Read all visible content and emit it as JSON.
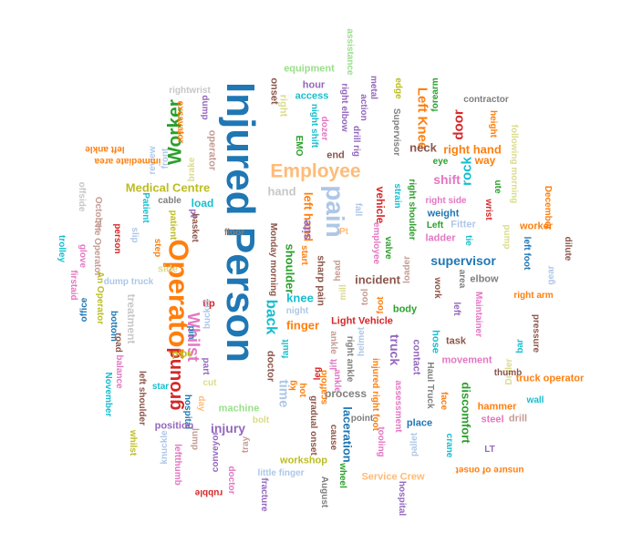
{
  "words": [
    {
      "text": "Injured Person",
      "color": "#1f77b4"
    },
    {
      "text": "Operator",
      "color": "#ff7f0e"
    },
    {
      "text": "Employee",
      "color": "#ffbb78"
    },
    {
      "text": "pain",
      "color": "#aec7e8"
    },
    {
      "text": "Worker",
      "color": "#2ca02c"
    },
    {
      "text": "ground",
      "color": "#d62728"
    },
    {
      "text": "Whilst",
      "color": "#e377c2"
    },
    {
      "text": "back",
      "color": "#17becf"
    },
    {
      "text": "Medical Centre",
      "color": "#bcbd22"
    },
    {
      "text": "supervisor",
      "color": "#1f77b4"
    },
    {
      "text": "shift",
      "color": "#e377c2"
    },
    {
      "text": "rock",
      "color": "#17becf"
    },
    {
      "text": "right hand",
      "color": "#ff7f0e"
    },
    {
      "text": "door",
      "color": "#d62728"
    },
    {
      "text": "Left Knee",
      "color": "#ff7f0e"
    },
    {
      "text": "neck",
      "color": "#8c564b"
    },
    {
      "text": "left hand",
      "color": "#ff7f0e"
    },
    {
      "text": "site",
      "color": "#9467bd"
    },
    {
      "text": "hand",
      "color": "#c7c7c7"
    },
    {
      "text": "knee",
      "color": "#17becf"
    },
    {
      "text": "finger",
      "color": "#ff7f0e"
    },
    {
      "text": "incident",
      "color": "#8c564b"
    },
    {
      "text": "truck",
      "color": "#9467bd"
    },
    {
      "text": "time",
      "color": "#aec7e8"
    },
    {
      "text": "injury",
      "color": "#9467bd"
    },
    {
      "text": "process",
      "color": "#7f7f7f"
    },
    {
      "text": "laceration",
      "color": "#1f77b4"
    },
    {
      "text": "discomfort",
      "color": "#2ca02c"
    },
    {
      "text": "vehicle",
      "color": "#d62728"
    },
    {
      "text": "Light Vehicle",
      "color": "#d62728"
    },
    {
      "text": "treatment",
      "color": "#c7c7c7"
    },
    {
      "text": "equipment",
      "color": "#98df8a"
    },
    {
      "text": "access",
      "color": "#17becf"
    },
    {
      "text": "hour",
      "color": "#9467bd"
    },
    {
      "text": "right",
      "color": "#dbdb8d"
    },
    {
      "text": "onset",
      "color": "#8c564b"
    },
    {
      "text": "assistance",
      "color": "#98df8a"
    },
    {
      "text": "right elbow",
      "color": "#9467bd"
    },
    {
      "text": "night shift",
      "color": "#17becf"
    },
    {
      "text": "dozer",
      "color": "#e377c2"
    },
    {
      "text": "EMO",
      "color": "#2ca02c"
    },
    {
      "text": "end",
      "color": "#8c564b"
    },
    {
      "text": "drill rig",
      "color": "#9467bd"
    },
    {
      "text": "action",
      "color": "#9467bd"
    },
    {
      "text": "metal",
      "color": "#9467bd"
    },
    {
      "text": "edge",
      "color": "#bcbd22"
    },
    {
      "text": "Supervisor",
      "color": "#7f7f7f"
    },
    {
      "text": "forearm",
      "color": "#2ca02c"
    },
    {
      "text": "contractor",
      "color": "#7f7f7f"
    },
    {
      "text": "height",
      "color": "#ff7f0e"
    },
    {
      "text": "eye",
      "color": "#2ca02c"
    },
    {
      "text": "way",
      "color": "#ff7f0e"
    },
    {
      "text": "following morning",
      "color": "#dbdb8d"
    },
    {
      "text": "rightwrist",
      "color": "#c7c7c7"
    },
    {
      "text": "excavator",
      "color": "#ff7f0e"
    },
    {
      "text": "dump",
      "color": "#9467bd"
    },
    {
      "text": "operator",
      "color": "#c49c94"
    },
    {
      "text": "brake",
      "color": "#dbdb8d"
    },
    {
      "text": "review",
      "color": "#aec7e8"
    },
    {
      "text": "immediate area",
      "color": "#ff7f0e"
    },
    {
      "text": "left ankle",
      "color": "#ff7f0e"
    },
    {
      "text": "front",
      "color": "#aec7e8"
    },
    {
      "text": "load",
      "color": "#17becf"
    },
    {
      "text": "cable",
      "color": "#7f7f7f"
    },
    {
      "text": "Patient",
      "color": "#17becf"
    },
    {
      "text": "patient",
      "color": "#bcbd22"
    },
    {
      "text": "basket",
      "color": "#8c564b"
    },
    {
      "text": "floor",
      "color": "#7f7f7f"
    },
    {
      "text": "pt",
      "color": "#9467bd"
    },
    {
      "text": "Pt",
      "color": "#ffbb78"
    },
    {
      "text": "fall",
      "color": "#aec7e8"
    },
    {
      "text": "employee",
      "color": "#e377c2"
    },
    {
      "text": "valve",
      "color": "#2ca02c"
    },
    {
      "text": "right side",
      "color": "#e377c2"
    },
    {
      "text": "weight",
      "color": "#1f77b4"
    },
    {
      "text": "Left",
      "color": "#2ca02c"
    },
    {
      "text": "Fitter",
      "color": "#aec7e8"
    },
    {
      "text": "ladder",
      "color": "#e377c2"
    },
    {
      "text": "tie",
      "color": "#17becf"
    },
    {
      "text": "right shoulder",
      "color": "#2ca02c"
    },
    {
      "text": "strain",
      "color": "#17becf"
    },
    {
      "text": "wrist",
      "color": "#d62728"
    },
    {
      "text": "pump",
      "color": "#dbdb8d"
    },
    {
      "text": "December",
      "color": "#ff7f0e"
    },
    {
      "text": "worker",
      "color": "#ff7f0e"
    },
    {
      "text": "ute",
      "color": "#2ca02c"
    },
    {
      "text": "left foot",
      "color": "#1f77b4"
    },
    {
      "text": "dilute",
      "color": "#8c564b"
    },
    {
      "text": "gear",
      "color": "#aec7e8"
    },
    {
      "text": "elbow",
      "color": "#7f7f7f"
    },
    {
      "text": "area",
      "color": "#7f7f7f"
    },
    {
      "text": "right arm",
      "color": "#ff7f0e"
    },
    {
      "text": "Maintainer",
      "color": "#e377c2"
    },
    {
      "text": "pressure",
      "color": "#8c564b"
    },
    {
      "text": "bar",
      "color": "#17becf"
    },
    {
      "text": "work",
      "color": "#8c564b"
    },
    {
      "text": "loader",
      "color": "#c49c94"
    },
    {
      "text": "body",
      "color": "#2ca02c"
    },
    {
      "text": "task",
      "color": "#8c564b"
    },
    {
      "text": "hose",
      "color": "#17becf"
    },
    {
      "text": "movement",
      "color": "#e377c2"
    },
    {
      "text": "truck operator",
      "color": "#ff7f0e"
    },
    {
      "text": "Driller",
      "color": "#dbdb8d"
    },
    {
      "text": "wall",
      "color": "#17becf"
    },
    {
      "text": "drill",
      "color": "#c49c94"
    },
    {
      "text": "hammer",
      "color": "#ff7f0e"
    },
    {
      "text": "steel",
      "color": "#e377c2"
    },
    {
      "text": "thumb",
      "color": "#8c564b"
    },
    {
      "text": "contact",
      "color": "#9467bd"
    },
    {
      "text": "face",
      "color": "#ff7f0e"
    },
    {
      "text": "Haul Truck",
      "color": "#7f7f7f"
    },
    {
      "text": "place",
      "color": "#1f77b4"
    },
    {
      "text": "crane",
      "color": "#17becf"
    },
    {
      "text": "injured right foot",
      "color": "#ff7f0e"
    },
    {
      "text": "assessment",
      "color": "#e377c2"
    },
    {
      "text": "tooling",
      "color": "#e377c2"
    },
    {
      "text": "pallet",
      "color": "#aec7e8"
    },
    {
      "text": "LT",
      "color": "#9467bd"
    },
    {
      "text": "unsure of onset",
      "color": "#ff7f0e"
    },
    {
      "text": "point",
      "color": "#7f7f7f"
    },
    {
      "text": "cause",
      "color": "#8c564b"
    },
    {
      "text": "Service Crew",
      "color": "#ffbb78"
    },
    {
      "text": "hospital",
      "color": "#9467bd"
    },
    {
      "text": "wheel",
      "color": "#2ca02c"
    },
    {
      "text": "August",
      "color": "#7f7f7f"
    },
    {
      "text": "workshop",
      "color": "#bcbd22"
    },
    {
      "text": "little finger",
      "color": "#aec7e8"
    },
    {
      "text": "fracture",
      "color": "#9467bd"
    },
    {
      "text": "doctor",
      "color": "#e377c2"
    },
    {
      "text": "conveyor",
      "color": "#9467bd"
    },
    {
      "text": "tray",
      "color": "#c49c94"
    },
    {
      "text": "bolt",
      "color": "#dbdb8d"
    },
    {
      "text": "machine",
      "color": "#98df8a"
    },
    {
      "text": "gradual onset",
      "color": "#8c564b"
    },
    {
      "text": "kg",
      "color": "#ff7f0e"
    },
    {
      "text": "hot",
      "color": "#ff7f0e"
    },
    {
      "text": "scaffold",
      "color": "#ff7f0e"
    },
    {
      "text": "leg",
      "color": "#d62728"
    },
    {
      "text": "lift",
      "color": "#e377c2"
    },
    {
      "text": "ankle",
      "color": "#e377c2"
    },
    {
      "text": "right ankle",
      "color": "#7f7f7f"
    },
    {
      "text": "left",
      "color": "#9467bd"
    },
    {
      "text": "night",
      "color": "#aec7e8"
    },
    {
      "text": "fault",
      "color": "#17becf"
    },
    {
      "text": "doctor2",
      "color": "#8c564b"
    },
    {
      "text": "mill",
      "color": "#dbdb8d"
    },
    {
      "text": "sharp pain",
      "color": "#8c564b"
    },
    {
      "text": "shoulder",
      "color": "#2ca02c"
    },
    {
      "text": "head",
      "color": "#c49c94"
    },
    {
      "text": "foot",
      "color": "#ff7f0e"
    },
    {
      "text": "tool",
      "color": "#c49c94"
    },
    {
      "text": "start",
      "color": "#ff7f0e"
    },
    {
      "text": "Monday morning",
      "color": "#8c564b"
    },
    {
      "text": "ankle2",
      "color": "#c49c94"
    },
    {
      "text": "helmet",
      "color": "#aec7e8"
    },
    {
      "text": "tip",
      "color": "#d62728"
    },
    {
      "text": "bucket",
      "color": "#aec7e8"
    },
    {
      "text": "pin",
      "color": "#1f77b4"
    },
    {
      "text": "pipe",
      "color": "#bcbd22"
    },
    {
      "text": "part",
      "color": "#9467bd"
    },
    {
      "text": "cut",
      "color": "#dbdb8d"
    },
    {
      "text": "day",
      "color": "#ffbb78"
    },
    {
      "text": "hospital2",
      "color": "#1f77b4"
    },
    {
      "text": "position",
      "color": "#9467bd"
    },
    {
      "text": "lump",
      "color": "#c49c94"
    },
    {
      "text": "knuckle",
      "color": "#aec7e8"
    },
    {
      "text": "leftthumb",
      "color": "#e377c2"
    },
    {
      "text": "rubble",
      "color": "#d62728"
    },
    {
      "text": "whilst",
      "color": "#bcbd22"
    },
    {
      "text": "November",
      "color": "#17becf"
    },
    {
      "text": "balance",
      "color": "#e377c2"
    },
    {
      "text": "left shoulder",
      "color": "#8c564b"
    },
    {
      "text": "star",
      "color": "#17becf"
    },
    {
      "text": "side",
      "color": "#dbdb8d"
    },
    {
      "text": "step",
      "color": "#ff7f0e"
    },
    {
      "text": "person",
      "color": "#d62728"
    },
    {
      "text": "slip",
      "color": "#aec7e8"
    },
    {
      "text": "trolley",
      "color": "#17becf"
    },
    {
      "text": "glove",
      "color": "#e377c2"
    },
    {
      "text": "The Operator",
      "color": "#c49c94"
    },
    {
      "text": "firstaid",
      "color": "#e377c2"
    },
    {
      "text": "office",
      "color": "#1f77b4"
    },
    {
      "text": "An Operator",
      "color": "#bcbd22"
    },
    {
      "text": "dump truck",
      "color": "#aec7e8"
    },
    {
      "text": "bottom",
      "color": "#1f77b4"
    },
    {
      "text": "road",
      "color": "#8c564b"
    },
    {
      "text": "offside",
      "color": "#c7c7c7"
    },
    {
      "text": "October",
      "color": "#c49c94"
    }
  ]
}
